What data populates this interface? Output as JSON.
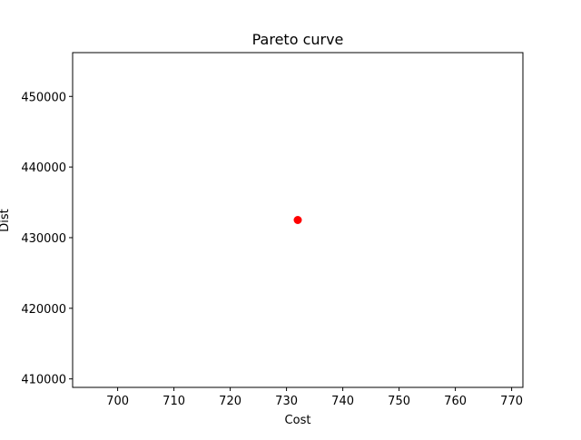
{
  "chart_data": {
    "type": "scatter",
    "title": "Pareto curve",
    "xlabel": "Cost",
    "ylabel": "Dist",
    "xlim": [
      692.0,
      772.0
    ],
    "ylim": [
      408800,
      456200
    ],
    "xticks": [
      700,
      710,
      720,
      730,
      740,
      750,
      760,
      770
    ],
    "yticks": [
      410000,
      420000,
      430000,
      440000,
      450000
    ],
    "grid": false,
    "points": [
      {
        "x": 732,
        "y": 432500,
        "color": "#ff0000"
      }
    ]
  }
}
